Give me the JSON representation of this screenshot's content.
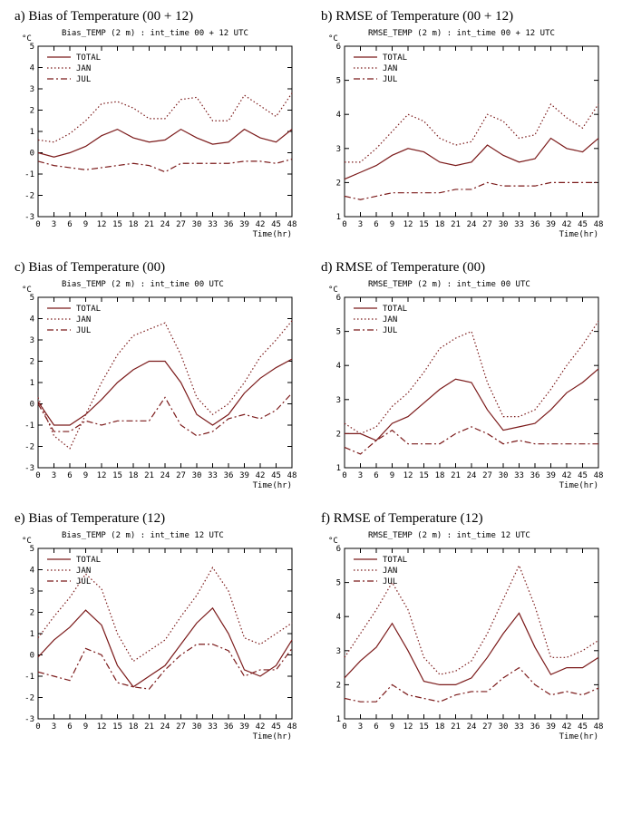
{
  "global": {
    "background_color": "#ffffff",
    "border_color": "#000000",
    "series_color": "#7b1a1a",
    "tick_font_size": 9,
    "title_font_size": 15,
    "legend": [
      "TOTAL",
      "JAN",
      "JUL"
    ],
    "legend_dash": [
      "solid",
      "dot",
      "dashdot"
    ],
    "line_width": 1.2,
    "x_label": "Time(hr)",
    "x_ticks": [
      0,
      3,
      6,
      9,
      12,
      15,
      18,
      21,
      24,
      27,
      30,
      33,
      36,
      39,
      42,
      45,
      48
    ],
    "y_unit": "°C"
  },
  "panels": [
    {
      "key": "a",
      "title": "a) Bias of Temperature (00 + 12)",
      "subtitle": "Bias_TEMP (2 m) : int_time 00 + 12 UTC",
      "ylim": [
        -3,
        5
      ],
      "ytick_step": 1,
      "series": {
        "TOTAL": [
          0.0,
          -0.2,
          0.0,
          0.3,
          0.8,
          1.1,
          0.7,
          0.5,
          0.6,
          1.1,
          0.7,
          0.4,
          0.5,
          1.1,
          0.7,
          0.5,
          1.1
        ],
        "JAN": [
          0.6,
          0.5,
          0.9,
          1.5,
          2.3,
          2.4,
          2.1,
          1.6,
          1.6,
          2.5,
          2.6,
          1.5,
          1.5,
          2.7,
          2.2,
          1.7,
          2.8
        ],
        "JUL": [
          -0.4,
          -0.6,
          -0.7,
          -0.8,
          -0.7,
          -0.6,
          -0.5,
          -0.6,
          -0.9,
          -0.5,
          -0.5,
          -0.5,
          -0.5,
          -0.4,
          -0.4,
          -0.5,
          -0.3
        ]
      }
    },
    {
      "key": "b",
      "title": "b) RMSE  of Temperature (00 + 12)",
      "subtitle": "RMSE_TEMP (2 m) : int_time 00 + 12 UTC",
      "ylim": [
        1,
        6
      ],
      "ytick_step": 1,
      "series": {
        "TOTAL": [
          2.1,
          2.3,
          2.5,
          2.8,
          3.0,
          2.9,
          2.6,
          2.5,
          2.6,
          3.1,
          2.8,
          2.6,
          2.7,
          3.3,
          3.0,
          2.9,
          3.3
        ],
        "JAN": [
          2.6,
          2.6,
          3.0,
          3.5,
          4.0,
          3.8,
          3.3,
          3.1,
          3.2,
          4.0,
          3.8,
          3.3,
          3.4,
          4.3,
          3.9,
          3.6,
          4.3
        ],
        "JUL": [
          1.6,
          1.5,
          1.6,
          1.7,
          1.7,
          1.7,
          1.7,
          1.8,
          1.8,
          2.0,
          1.9,
          1.9,
          1.9,
          2.0,
          2.0,
          2.0,
          2.0
        ]
      }
    },
    {
      "key": "c",
      "title": "c) Bias of Temperature (00)",
      "subtitle": "Bias_TEMP (2 m) : int_time 00 UTC",
      "ylim": [
        -3,
        5
      ],
      "ytick_step": 1,
      "series": {
        "TOTAL": [
          0.1,
          -1.0,
          -1.0,
          -0.5,
          0.2,
          1.0,
          1.6,
          2.0,
          2.0,
          1.0,
          -0.5,
          -1.0,
          -0.5,
          0.5,
          1.2,
          1.7,
          2.1
        ],
        "JAN": [
          0.3,
          -1.5,
          -2.1,
          -0.5,
          1.0,
          2.3,
          3.2,
          3.5,
          3.8,
          2.3,
          0.3,
          -0.5,
          0.0,
          1.0,
          2.2,
          3.0,
          3.9
        ],
        "JUL": [
          0.0,
          -1.3,
          -1.3,
          -0.8,
          -1.0,
          -0.8,
          -0.8,
          -0.8,
          0.3,
          -1.0,
          -1.5,
          -1.3,
          -0.7,
          -0.5,
          -0.7,
          -0.3,
          0.5
        ]
      }
    },
    {
      "key": "d",
      "title": "d) RMSE  of Temperature (00)",
      "subtitle": "RMSE_TEMP (2 m) : int_time 00 UTC",
      "ylim": [
        1,
        6
      ],
      "ytick_step": 1,
      "series": {
        "TOTAL": [
          2.0,
          2.0,
          1.8,
          2.3,
          2.5,
          2.9,
          3.3,
          3.6,
          3.5,
          2.7,
          2.1,
          2.2,
          2.3,
          2.7,
          3.2,
          3.5,
          3.9
        ],
        "JAN": [
          2.3,
          2.0,
          2.2,
          2.8,
          3.2,
          3.8,
          4.5,
          4.8,
          5.0,
          3.5,
          2.5,
          2.5,
          2.7,
          3.3,
          4.0,
          4.6,
          5.3
        ],
        "JUL": [
          1.6,
          1.4,
          1.8,
          2.1,
          1.7,
          1.7,
          1.7,
          2.0,
          2.2,
          2.0,
          1.7,
          1.8,
          1.7,
          1.7,
          1.7,
          1.7,
          1.7
        ]
      }
    },
    {
      "key": "e",
      "title": "e) Bias of Temperature (12)",
      "subtitle": "Bias_TEMP (2 m) : int_time 12 UTC",
      "ylim": [
        -3,
        5
      ],
      "ytick_step": 1,
      "series": {
        "TOTAL": [
          -0.1,
          0.7,
          1.3,
          2.1,
          1.4,
          -0.5,
          -1.5,
          -1.0,
          -0.5,
          0.5,
          1.5,
          2.2,
          1.0,
          -0.7,
          -1.0,
          -0.5,
          0.7
        ],
        "JAN": [
          0.8,
          1.8,
          2.7,
          3.8,
          3.1,
          1.0,
          -0.3,
          0.2,
          0.7,
          1.8,
          2.8,
          4.1,
          3.0,
          0.8,
          0.5,
          1.0,
          1.5
        ],
        "JUL": [
          -0.8,
          -1.0,
          -1.2,
          0.3,
          0.0,
          -1.3,
          -1.5,
          -1.6,
          -0.7,
          0.0,
          0.5,
          0.5,
          0.2,
          -1.0,
          -0.7,
          -0.7,
          0.3
        ]
      }
    },
    {
      "key": "f",
      "title": "f) RMSE  of Temperature (12)",
      "subtitle": "RMSE_TEMP (2 m) : int_time 12 UTC",
      "ylim": [
        1,
        6
      ],
      "ytick_step": 1,
      "series": {
        "TOTAL": [
          2.2,
          2.7,
          3.1,
          3.8,
          3.0,
          2.1,
          2.0,
          2.0,
          2.2,
          2.8,
          3.5,
          4.1,
          3.1,
          2.3,
          2.5,
          2.5,
          2.8
        ],
        "JAN": [
          2.8,
          3.5,
          4.2,
          5.0,
          4.2,
          2.8,
          2.3,
          2.4,
          2.7,
          3.5,
          4.5,
          5.5,
          4.3,
          2.8,
          2.8,
          3.0,
          3.3
        ],
        "JUL": [
          1.6,
          1.5,
          1.5,
          2.0,
          1.7,
          1.6,
          1.5,
          1.7,
          1.8,
          1.8,
          2.2,
          2.5,
          2.0,
          1.7,
          1.8,
          1.7,
          1.9
        ]
      }
    }
  ]
}
